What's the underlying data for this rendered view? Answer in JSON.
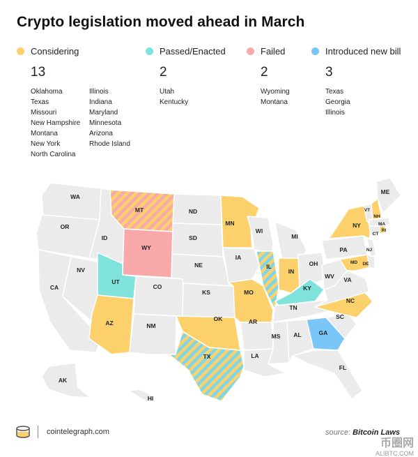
{
  "title": "Crypto legislation moved ahead in March",
  "legend": [
    {
      "key": "considering",
      "label": "Considering",
      "color": "#fcd16b",
      "count": "13",
      "states_col1": [
        "Oklahoma",
        "Texas",
        "Missouri",
        "New Hampshire",
        "Montana",
        "New York",
        "North Carolina"
      ],
      "states_col2": [
        "Illinois",
        "Indiana",
        "Maryland",
        "Minnesota",
        "Arizona",
        "Rhode Island"
      ]
    },
    {
      "key": "passed",
      "label": "Passed/Enacted",
      "color": "#7fe3dc",
      "count": "2",
      "states": [
        "Utah",
        "Kentucky"
      ]
    },
    {
      "key": "failed",
      "label": "Failed",
      "color": "#f9a9a9",
      "count": "2",
      "states": [
        "Wyoming",
        "Montana"
      ]
    },
    {
      "key": "introduced",
      "label": "Introduced new bill",
      "color": "#79c6f7",
      "count": "3",
      "states": [
        "Texas",
        "Georgia",
        "Illinois"
      ]
    }
  ],
  "map_labels": [
    "WA",
    "OR",
    "ID",
    "MT",
    "WY",
    "ND",
    "SD",
    "MN",
    "NE",
    "IA",
    "WI",
    "MI",
    "ME",
    "VT",
    "NH",
    "MA",
    "RI",
    "CT",
    "NJ",
    "NY",
    "PA",
    "DE",
    "MD",
    "OH",
    "IN",
    "IL",
    "WV",
    "VA",
    "KY",
    "MO",
    "KS",
    "NV",
    "CA",
    "UT",
    "CO",
    "AZ",
    "NM",
    "OK",
    "TX",
    "AR",
    "TN",
    "NC",
    "SC",
    "GA",
    "AL",
    "MS",
    "LA",
    "FL",
    "AK",
    "HI"
  ],
  "footer": {
    "site": "cointelegraph.com",
    "source_prefix": "source:",
    "source_name": "Bitcoin Laws"
  },
  "watermark": {
    "big": "币圈网",
    "small": "ALIBTC.COM"
  },
  "colors": {
    "default_state": "#ebebeb",
    "border": "#ffffff",
    "stripe_base": "#7fd6e6"
  }
}
